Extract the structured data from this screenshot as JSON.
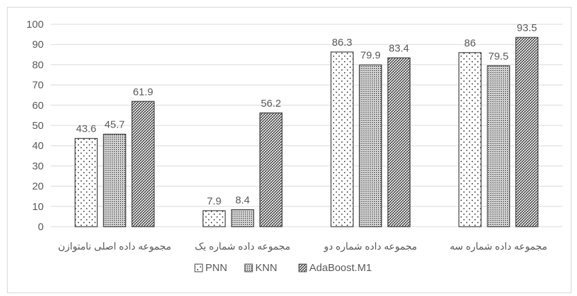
{
  "chart_data": {
    "type": "bar",
    "categories": [
      "مجموعه داده اصلی نامتوازن",
      "مجموعه داده شماره یک",
      "مجموعه داده شماره دو",
      "مجموعه داده شماره سه"
    ],
    "series": [
      {
        "name": "PNN",
        "values": [
          43.6,
          7.9,
          86.3,
          86
        ],
        "pattern": "dots"
      },
      {
        "name": "KNN",
        "values": [
          45.7,
          8.4,
          79.9,
          79.5
        ],
        "pattern": "dense-dots"
      },
      {
        "name": "AdaBoost.M1",
        "values": [
          61.9,
          56.2,
          83.4,
          93.5
        ],
        "pattern": "crosshatch"
      }
    ],
    "data_labels": [
      [
        "43.6",
        "7.9",
        "86.3",
        "86"
      ],
      [
        "45.7",
        "8.4",
        "79.9",
        "79.5"
      ],
      [
        "61.9",
        "56.2",
        "83.4",
        "93.5"
      ]
    ],
    "ylim": [
      0,
      100
    ],
    "yticks": [
      "0",
      "10",
      "20",
      "30",
      "40",
      "50",
      "60",
      "70",
      "80",
      "90",
      "100"
    ],
    "grid": true,
    "legend_position": "bottom",
    "title": "",
    "xlabel": "",
    "ylabel": "",
    "colors": {
      "grid": "#d9d9d9",
      "bar_edge": "#404040",
      "text": "#595959"
    }
  }
}
